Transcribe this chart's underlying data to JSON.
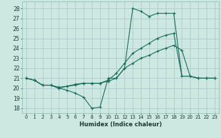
{
  "xlabel": "Humidex (Indice chaleur)",
  "bg_color": "#cce8e0",
  "grid_color": "#aacccc",
  "line_color": "#1a6b5a",
  "xlim": [
    -0.5,
    23.5
  ],
  "ylim": [
    17.5,
    28.7
  ],
  "yticks": [
    18,
    19,
    20,
    21,
    22,
    23,
    24,
    25,
    26,
    27,
    28
  ],
  "xticks": [
    0,
    1,
    2,
    3,
    4,
    5,
    6,
    7,
    8,
    9,
    10,
    11,
    12,
    13,
    14,
    15,
    16,
    17,
    18,
    19,
    20,
    21,
    22,
    23
  ],
  "series": [
    {
      "x": [
        0,
        1,
        2,
        3,
        4,
        5,
        6,
        7,
        8,
        9,
        10,
        11,
        12,
        13,
        14,
        15,
        16,
        17,
        18,
        19,
        20,
        21,
        22,
        23
      ],
      "y": [
        21.0,
        20.8,
        20.3,
        20.3,
        20.0,
        19.8,
        19.5,
        19.1,
        18.0,
        18.1,
        21.0,
        21.0,
        22.0,
        28.0,
        27.7,
        27.2,
        27.5,
        27.5,
        27.5,
        21.2,
        21.2,
        21.0,
        21.0,
        21.0
      ]
    },
    {
      "x": [
        0,
        1,
        2,
        3,
        4,
        5,
        6,
        7,
        8,
        9,
        10,
        11,
        12,
        13,
        14,
        15,
        16,
        17,
        18,
        19,
        20,
        21,
        22,
        23
      ],
      "y": [
        21.0,
        20.8,
        20.3,
        20.3,
        20.0,
        20.2,
        20.3,
        20.5,
        20.5,
        20.5,
        20.8,
        21.5,
        22.5,
        23.5,
        24.0,
        24.5,
        25.0,
        25.3,
        25.5,
        21.2,
        21.2,
        21.0,
        21.0,
        21.0
      ]
    },
    {
      "x": [
        0,
        1,
        2,
        3,
        4,
        5,
        6,
        7,
        8,
        9,
        10,
        11,
        12,
        13,
        14,
        15,
        16,
        17,
        18,
        19,
        20,
        21,
        22,
        23
      ],
      "y": [
        21.0,
        20.8,
        20.3,
        20.3,
        20.1,
        20.2,
        20.4,
        20.5,
        20.5,
        20.5,
        20.7,
        21.0,
        22.0,
        22.5,
        23.0,
        23.3,
        23.7,
        24.0,
        24.3,
        23.8,
        21.2,
        21.0,
        21.0,
        21.0
      ]
    }
  ]
}
